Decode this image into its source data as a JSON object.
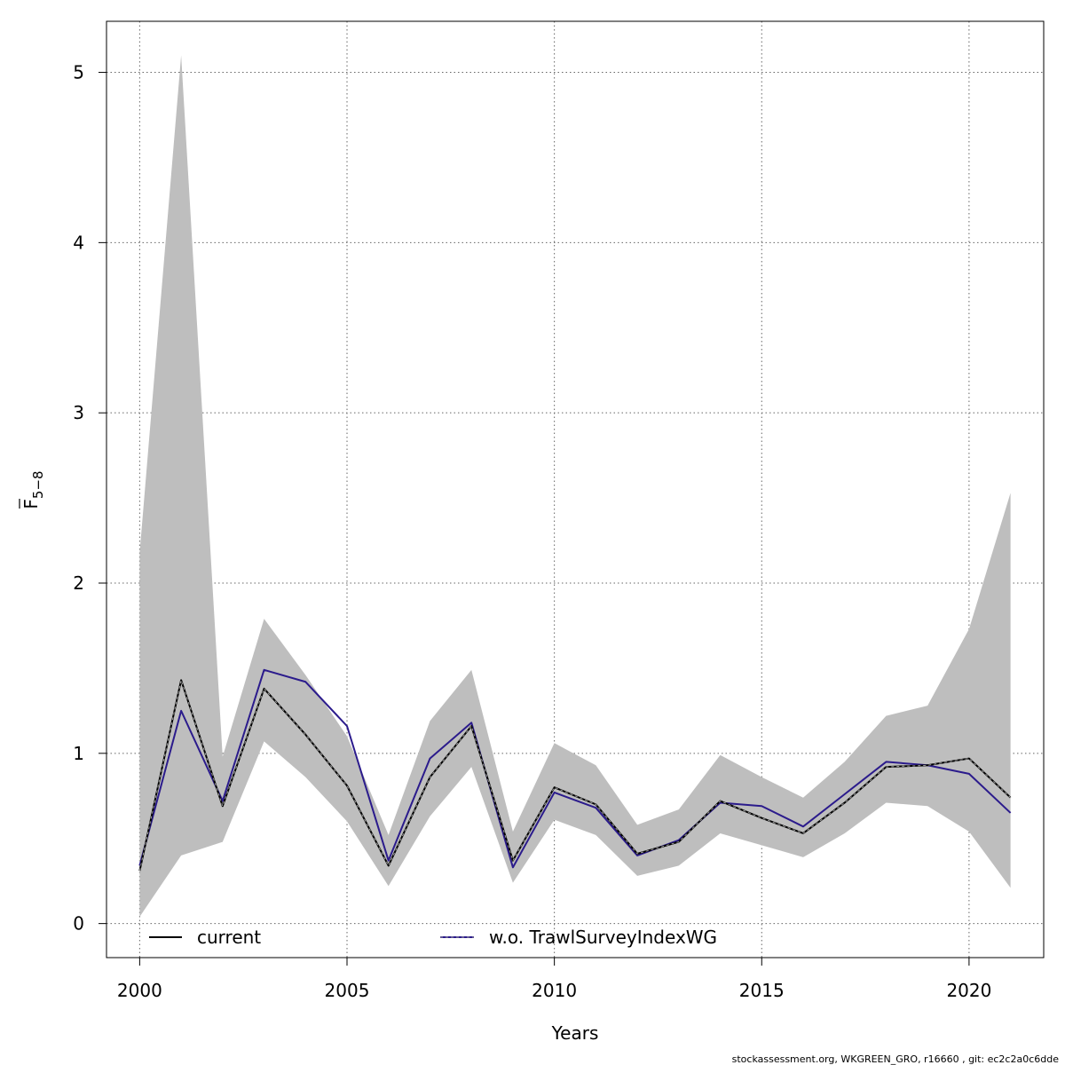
{
  "chart_data": {
    "type": "line",
    "xlabel": "Years",
    "ylabel": "F",
    "ylabel_subscript": "5−8",
    "xlim": [
      1999.2,
      2021.8
    ],
    "ylim": [
      -0.2,
      5.3
    ],
    "x_ticks": [
      2000,
      2005,
      2010,
      2015,
      2020
    ],
    "y_ticks": [
      0,
      1,
      2,
      3,
      4,
      5
    ],
    "grid": true,
    "legend_position": "bottom",
    "x": [
      2000,
      2001,
      2002,
      2003,
      2004,
      2005,
      2006,
      2007,
      2008,
      2009,
      2010,
      2011,
      2012,
      2013,
      2014,
      2015,
      2016,
      2017,
      2018,
      2019,
      2020,
      2021
    ],
    "confidence_band": {
      "upper": [
        2.18,
        5.1,
        0.98,
        1.79,
        1.46,
        1.1,
        0.52,
        1.19,
        1.49,
        0.54,
        1.06,
        0.93,
        0.58,
        0.67,
        0.99,
        0.86,
        0.74,
        0.95,
        1.22,
        1.28,
        1.73,
        2.53
      ],
      "lower": [
        0.04,
        0.4,
        0.48,
        1.07,
        0.86,
        0.6,
        0.22,
        0.63,
        0.92,
        0.24,
        0.61,
        0.52,
        0.28,
        0.34,
        0.53,
        0.46,
        0.39,
        0.53,
        0.71,
        0.69,
        0.54,
        0.21
      ],
      "color": "#bebebe"
    },
    "series": [
      {
        "name": "current",
        "values": [
          0.31,
          1.43,
          0.69,
          1.38,
          1.11,
          0.81,
          0.34,
          0.86,
          1.16,
          0.37,
          0.8,
          0.7,
          0.41,
          0.48,
          0.72,
          0.62,
          0.53,
          0.71,
          0.92,
          0.93,
          0.97,
          0.74
        ],
        "color": "#000000",
        "style": "solid"
      },
      {
        "name": "w.o. TrawlSurveyIndexWG",
        "values": [
          0.34,
          1.25,
          0.72,
          1.49,
          1.42,
          1.16,
          0.37,
          0.97,
          1.18,
          0.33,
          0.77,
          0.68,
          0.4,
          0.49,
          0.71,
          0.69,
          0.57,
          0.76,
          0.95,
          0.93,
          0.88,
          0.65
        ],
        "color": "#2b1b8c",
        "style": "solid"
      }
    ]
  },
  "footer": "stockassessment.org, WKGREEN_GRO, r16660 , git: ec2c2a0c6dde"
}
